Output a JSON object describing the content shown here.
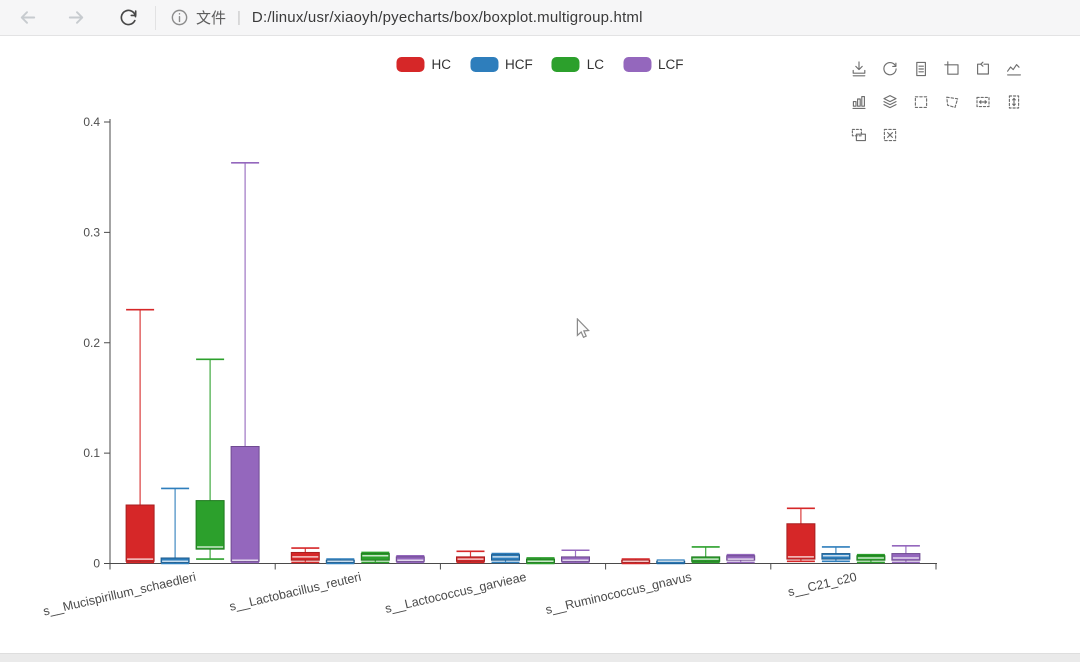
{
  "browser": {
    "file_label": "文件",
    "pipe": "|",
    "url": "D:/linux/usr/xiaoyh/pyecharts/box/boxplot.multigroup.html"
  },
  "legend": {
    "items": [
      {
        "label": "HC",
        "color": "#d62728"
      },
      {
        "label": "HCF",
        "color": "#2e7ebc"
      },
      {
        "label": "LC",
        "color": "#2ca02c"
      },
      {
        "label": "LCF",
        "color": "#9467bd"
      }
    ]
  },
  "toolbox": {
    "tools": [
      "save-as-image",
      "restore",
      "data-view",
      "data-zoom",
      "data-zoom-reset",
      "magic-type-line",
      "magic-type-bar",
      "magic-type-stack",
      "brush-rect",
      "brush-polygon",
      "brush-line-x",
      "brush-line-y",
      "brush-keep",
      "brush-clear"
    ]
  },
  "chart_data": {
    "type": "boxplot",
    "title": "",
    "categories": [
      "s__Mucispirillum_schaedleri",
      "s__Lactobacillus_reuteri",
      "s__Lactococcus_garvieae",
      "s__Ruminococcus_gnavus",
      "s__C21_c20"
    ],
    "stat_order": [
      "min",
      "q1",
      "median",
      "q3",
      "max"
    ],
    "series": [
      {
        "name": "HC",
        "color": "#d62728",
        "border": "#a81e1f",
        "data": [
          [
            0.001,
            0.002,
            0.004,
            0.053,
            0.23
          ],
          [
            0.001,
            0.003,
            0.006,
            0.01,
            0.014
          ],
          [
            0.001,
            0.002,
            0.004,
            0.006,
            0.011
          ],
          [
            0.0,
            0.001,
            0.002,
            0.003,
            0.004
          ],
          [
            0.002,
            0.004,
            0.006,
            0.036,
            0.05
          ]
        ]
      },
      {
        "name": "HCF",
        "color": "#2e7ebc",
        "border": "#1d5c8e",
        "data": [
          [
            0.0,
            0.001,
            0.002,
            0.005,
            0.068
          ],
          [
            0.0,
            0.001,
            0.002,
            0.003,
            0.004
          ],
          [
            0.001,
            0.003,
            0.006,
            0.008,
            0.009
          ],
          [
            0.0,
            0.001,
            0.002,
            0.002,
            0.003
          ],
          [
            0.002,
            0.004,
            0.007,
            0.009,
            0.015
          ]
        ]
      },
      {
        "name": "LC",
        "color": "#2ca02c",
        "border": "#1f7a1f",
        "data": [
          [
            0.004,
            0.013,
            0.015,
            0.057,
            0.185
          ],
          [
            0.001,
            0.003,
            0.007,
            0.009,
            0.01
          ],
          [
            0.0,
            0.001,
            0.002,
            0.004,
            0.005
          ],
          [
            0.001,
            0.002,
            0.004,
            0.006,
            0.015
          ],
          [
            0.001,
            0.003,
            0.005,
            0.007,
            0.008
          ]
        ]
      },
      {
        "name": "LCF",
        "color": "#9467bd",
        "border": "#6f4b91",
        "data": [
          [
            0.001,
            0.002,
            0.003,
            0.106,
            0.363
          ],
          [
            0.001,
            0.002,
            0.003,
            0.006,
            0.007
          ],
          [
            0.001,
            0.002,
            0.003,
            0.006,
            0.012
          ],
          [
            0.001,
            0.003,
            0.004,
            0.007,
            0.008
          ],
          [
            0.001,
            0.003,
            0.005,
            0.009,
            0.016
          ]
        ]
      }
    ],
    "xlabel": "",
    "ylabel": "",
    "ylim": [
      0,
      0.4
    ],
    "yticks": [
      0,
      0.1,
      0.2,
      0.3,
      0.4
    ],
    "ytick_labels": [
      "0",
      "0.1",
      "0.2",
      "0.3",
      "0.4"
    ],
    "xlabel_rotate": -13,
    "grid": false,
    "legend_position": "top-center",
    "toolbox_position": "top-right"
  }
}
